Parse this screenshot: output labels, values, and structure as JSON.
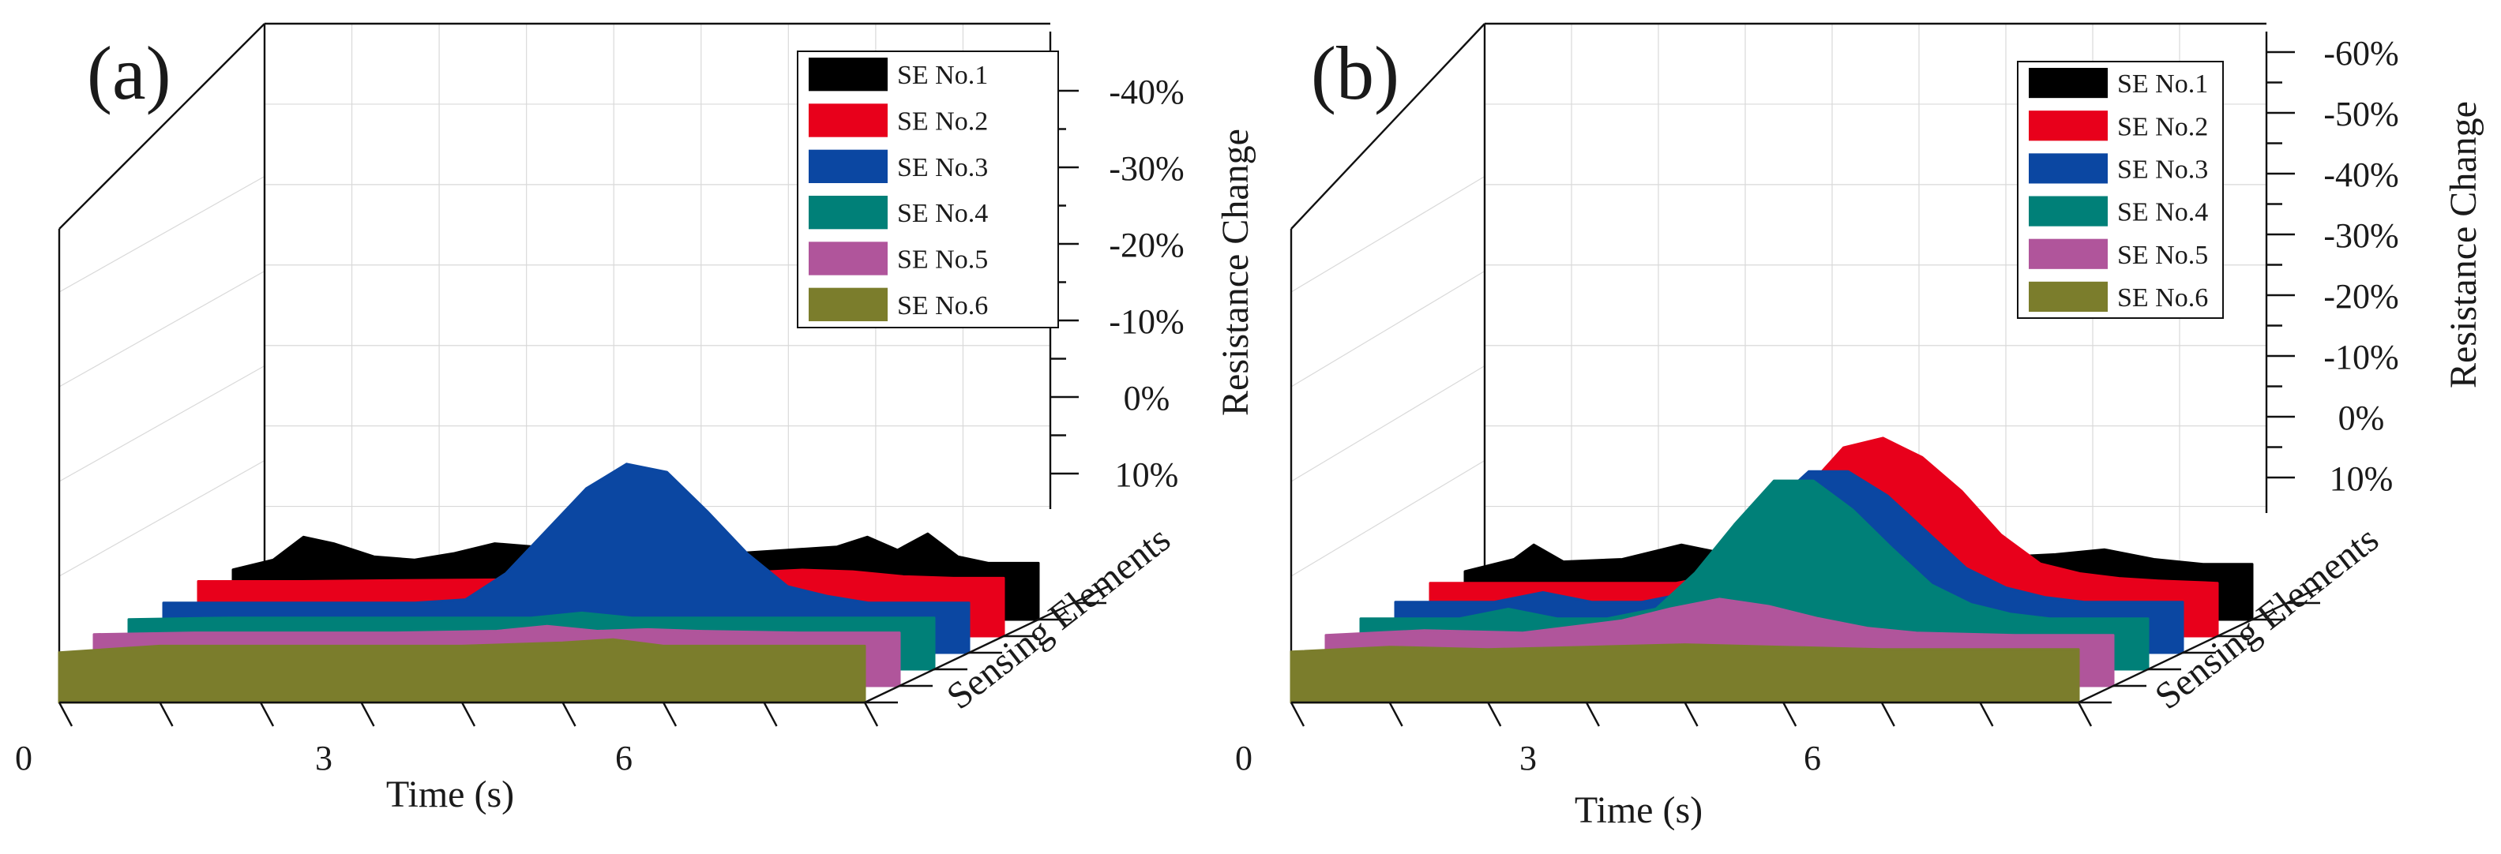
{
  "chart_data": [
    {
      "type": "area",
      "panel_label": "(a)",
      "title": "",
      "xlabel": "Time (s)",
      "ylabel": "",
      "depth_label": "Sensing Elements",
      "x_ticks": [
        "0",
        "3",
        "6"
      ],
      "z_ticks": [
        "-40%",
        "-30%",
        "-20%",
        "-10%",
        "0%",
        "10%"
      ],
      "x_range": [
        0,
        8
      ],
      "z_range": [
        -45,
        12
      ],
      "legend_position": "top-right",
      "series": [
        {
          "name": "SE No.1",
          "color": "#000000",
          "x": [
            0,
            0.4,
            0.7,
            1.0,
            1.4,
            1.8,
            2.2,
            2.6,
            3.0,
            3.5,
            4.0,
            4.5,
            5.0,
            5.5,
            6.0,
            6.3,
            6.6,
            6.9,
            7.2,
            7.5,
            8.0
          ],
          "values": [
            10,
            7,
            0,
            2,
            6,
            7,
            5,
            2,
            3,
            5,
            6,
            6,
            5,
            4,
            3,
            0,
            4,
            -1,
            6,
            8,
            8
          ]
        },
        {
          "name": "SE No.2",
          "color": "#e8001b",
          "x": [
            0,
            1,
            2,
            3,
            4,
            5,
            6,
            6.5,
            7,
            7.5,
            8
          ],
          "values": [
            8.5,
            8.5,
            8.2,
            8,
            7.5,
            6.5,
            5,
            5.5,
            7,
            7.5,
            7.5
          ]
        },
        {
          "name": "SE No.3",
          "color": "#0b47a2",
          "x": [
            0,
            1,
            2,
            2.5,
            3.0,
            3.4,
            3.8,
            4.2,
            4.6,
            5.0,
            5.4,
            5.8,
            6.2,
            6.6,
            7.0,
            7.4,
            8.0
          ],
          "values": [
            10,
            10,
            10,
            10,
            9,
            1,
            -12,
            -25,
            -32.5,
            -30,
            -18,
            -5,
            5,
            8,
            10,
            10,
            10
          ]
        },
        {
          "name": "SE No.4",
          "color": "#008078",
          "x": [
            0,
            1,
            2,
            3,
            4,
            4.5,
            5,
            6,
            7,
            8
          ],
          "values": [
            10,
            9.5,
            9.5,
            9.5,
            9.5,
            8,
            9.5,
            9.5,
            9.5,
            9.5
          ]
        },
        {
          "name": "SE No.5",
          "color": "#b0559b",
          "x": [
            0,
            1,
            2,
            3,
            4,
            4.5,
            5,
            5.5,
            6,
            7,
            8
          ],
          "values": [
            9.5,
            9,
            9,
            9,
            8.5,
            7,
            8.5,
            8,
            8.5,
            9,
            9
          ]
        },
        {
          "name": "SE No.6",
          "color": "#7b7d2c",
          "x": [
            0,
            1,
            2,
            3,
            4,
            5,
            5.5,
            6,
            7,
            8
          ],
          "values": [
            10,
            8,
            8,
            8,
            8,
            7,
            6,
            8,
            8,
            8
          ]
        }
      ]
    },
    {
      "type": "area",
      "panel_label": "(b)",
      "title": "",
      "xlabel": "Time (s)",
      "ylabel": "Resistance Change",
      "depth_label": "Sensing Elements",
      "x_ticks": [
        "0",
        "3",
        "6"
      ],
      "z_ticks": [
        "-60%",
        "-50%",
        "-40%",
        "-30%",
        "-20%",
        "-10%",
        "0%",
        "10%"
      ],
      "x_range": [
        0,
        8
      ],
      "z_range": [
        -65,
        12
      ],
      "legend_position": "top-right",
      "series": [
        {
          "name": "SE No.1",
          "color": "#000000",
          "x": [
            0,
            0.5,
            0.7,
            1.0,
            1.6,
            2.2,
            2.8,
            3.5,
            4,
            5,
            6,
            6.5,
            7,
            7.5,
            8
          ],
          "values": [
            10,
            5,
            -1,
            6,
            5,
            -1,
            4,
            5,
            5,
            5,
            3,
            1,
            5,
            7,
            7
          ]
        },
        {
          "name": "SE No.2",
          "color": "#e8001b",
          "x": [
            0,
            1,
            2,
            2.5,
            3.0,
            3.4,
            3.8,
            4.2,
            4.6,
            5.0,
            5.4,
            5.8,
            6.2,
            6.6,
            7.0,
            7.4,
            8.0
          ],
          "values": [
            8,
            8,
            8,
            8,
            4,
            -10,
            -30,
            -48,
            -52,
            -44,
            -30,
            -12,
            0,
            4,
            6,
            7,
            8
          ]
        },
        {
          "name": "SE No.3",
          "color": "#0b47a2",
          "x": [
            0,
            1,
            1.5,
            2,
            2.5,
            3.0,
            3.4,
            3.8,
            4.2,
            4.6,
            5.0,
            5.4,
            5.8,
            6.2,
            6.6,
            7.0,
            8.0
          ],
          "values": [
            9,
            9,
            5,
            9,
            9,
            5,
            -10,
            -30,
            -45,
            -45,
            -35,
            -20,
            -5,
            3,
            7,
            9,
            9
          ]
        },
        {
          "name": "SE No.4",
          "color": "#008078",
          "x": [
            0,
            1,
            1.5,
            2,
            2.5,
            3.0,
            3.4,
            3.8,
            4.2,
            4.6,
            5.0,
            5.4,
            5.8,
            6.2,
            6.6,
            7.0,
            8.0
          ],
          "values": [
            9,
            9,
            5,
            9,
            9,
            5,
            -10,
            -30,
            -48,
            -48,
            -36,
            -20,
            -5,
            3,
            7,
            9,
            9
          ]
        },
        {
          "name": "SE No.5",
          "color": "#b0559b",
          "x": [
            0,
            1,
            2,
            3,
            3.5,
            4,
            4.5,
            5,
            5.5,
            6,
            7,
            8
          ],
          "values": [
            9,
            7,
            8,
            3,
            -2,
            -6,
            -3,
            2,
            6,
            8,
            9,
            9
          ]
        },
        {
          "name": "SE No.6",
          "color": "#7b7d2c",
          "x": [
            0,
            1,
            2,
            3,
            4,
            5,
            6,
            7,
            8
          ],
          "values": [
            9,
            7,
            8,
            7,
            6,
            7,
            8,
            8,
            8
          ]
        }
      ]
    }
  ]
}
